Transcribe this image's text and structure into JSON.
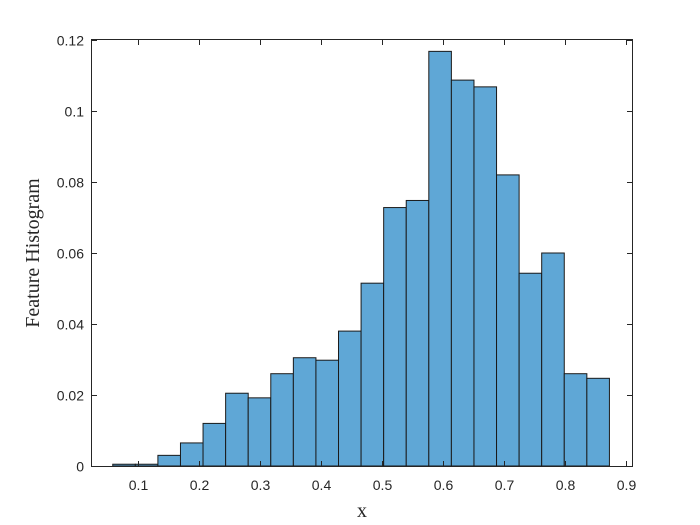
{
  "chart_data": {
    "type": "bar",
    "title": "",
    "xlabel": "x",
    "ylabel": "Feature Histogram",
    "xlim": [
      0.025,
      0.91
    ],
    "ylim": [
      0,
      0.12
    ],
    "xticks": [
      0.1,
      0.2,
      0.3,
      0.4,
      0.5,
      0.6,
      0.7,
      0.8,
      0.9
    ],
    "yticks": [
      0,
      0.02,
      0.04,
      0.06,
      0.08,
      0.1,
      0.12
    ],
    "bin_width": 0.037,
    "bin_left_edges": [
      0.059,
      0.096,
      0.133,
      0.17,
      0.207,
      0.244,
      0.281,
      0.318,
      0.355,
      0.392,
      0.429,
      0.466,
      0.503,
      0.54,
      0.577,
      0.614,
      0.651,
      0.688,
      0.725,
      0.762,
      0.799,
      0.836
    ],
    "values": [
      0.0005,
      0.0005,
      0.003,
      0.0065,
      0.012,
      0.0205,
      0.0192,
      0.026,
      0.0305,
      0.0298,
      0.038,
      0.0515,
      0.0728,
      0.0748,
      0.1168,
      0.1087,
      0.1068,
      0.082,
      0.0543,
      0.06,
      0.026,
      0.0247
    ],
    "grid": false,
    "legend": "none",
    "colors": {
      "bar_fill": "#5fa7d6",
      "bar_edge": "#1a1a1a"
    }
  }
}
